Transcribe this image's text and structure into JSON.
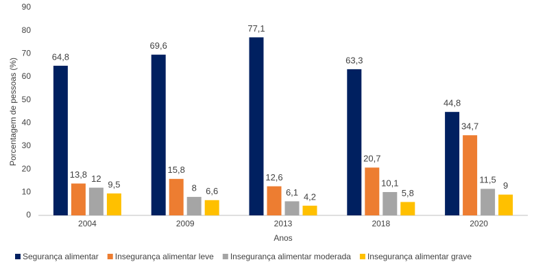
{
  "chart_data": {
    "type": "bar",
    "x_label": "Anos",
    "y_label": "Porcentagem de pessoas (%)",
    "categories": [
      "2004",
      "2009",
      "2013",
      "2018",
      "2020"
    ],
    "series": [
      {
        "name": "Segurança alimentar",
        "color": "#002060",
        "values": [
          64.8,
          69.6,
          77.1,
          63.3,
          44.8
        ],
        "value_labels": [
          "64,8",
          "69,6",
          "77,1",
          "63,3",
          "44,8"
        ]
      },
      {
        "name": "Insegurança alimentar leve",
        "color": "#ED7D31",
        "values": [
          13.8,
          15.8,
          12.6,
          20.7,
          34.7
        ],
        "value_labels": [
          "13,8",
          "15,8",
          "12,6",
          "20,7",
          "34,7"
        ]
      },
      {
        "name": "Insegurança alimentar moderada",
        "color": "#A5A5A5",
        "values": [
          12,
          8,
          6.1,
          10.1,
          11.5
        ],
        "value_labels": [
          "12",
          "8",
          "6,1",
          "10,1",
          "11,5"
        ]
      },
      {
        "name": "Insegurança alimentar grave",
        "color": "#FFC000",
        "values": [
          9.5,
          6.6,
          4.2,
          5.8,
          9
        ],
        "value_labels": [
          "9,5",
          "6,6",
          "4,2",
          "5,8",
          "9"
        ]
      }
    ],
    "ylim": [
      0,
      90
    ],
    "yticks": [
      0,
      10,
      20,
      30,
      40,
      50,
      60,
      70,
      80,
      90
    ],
    "grid": false,
    "legend": "bottom"
  }
}
